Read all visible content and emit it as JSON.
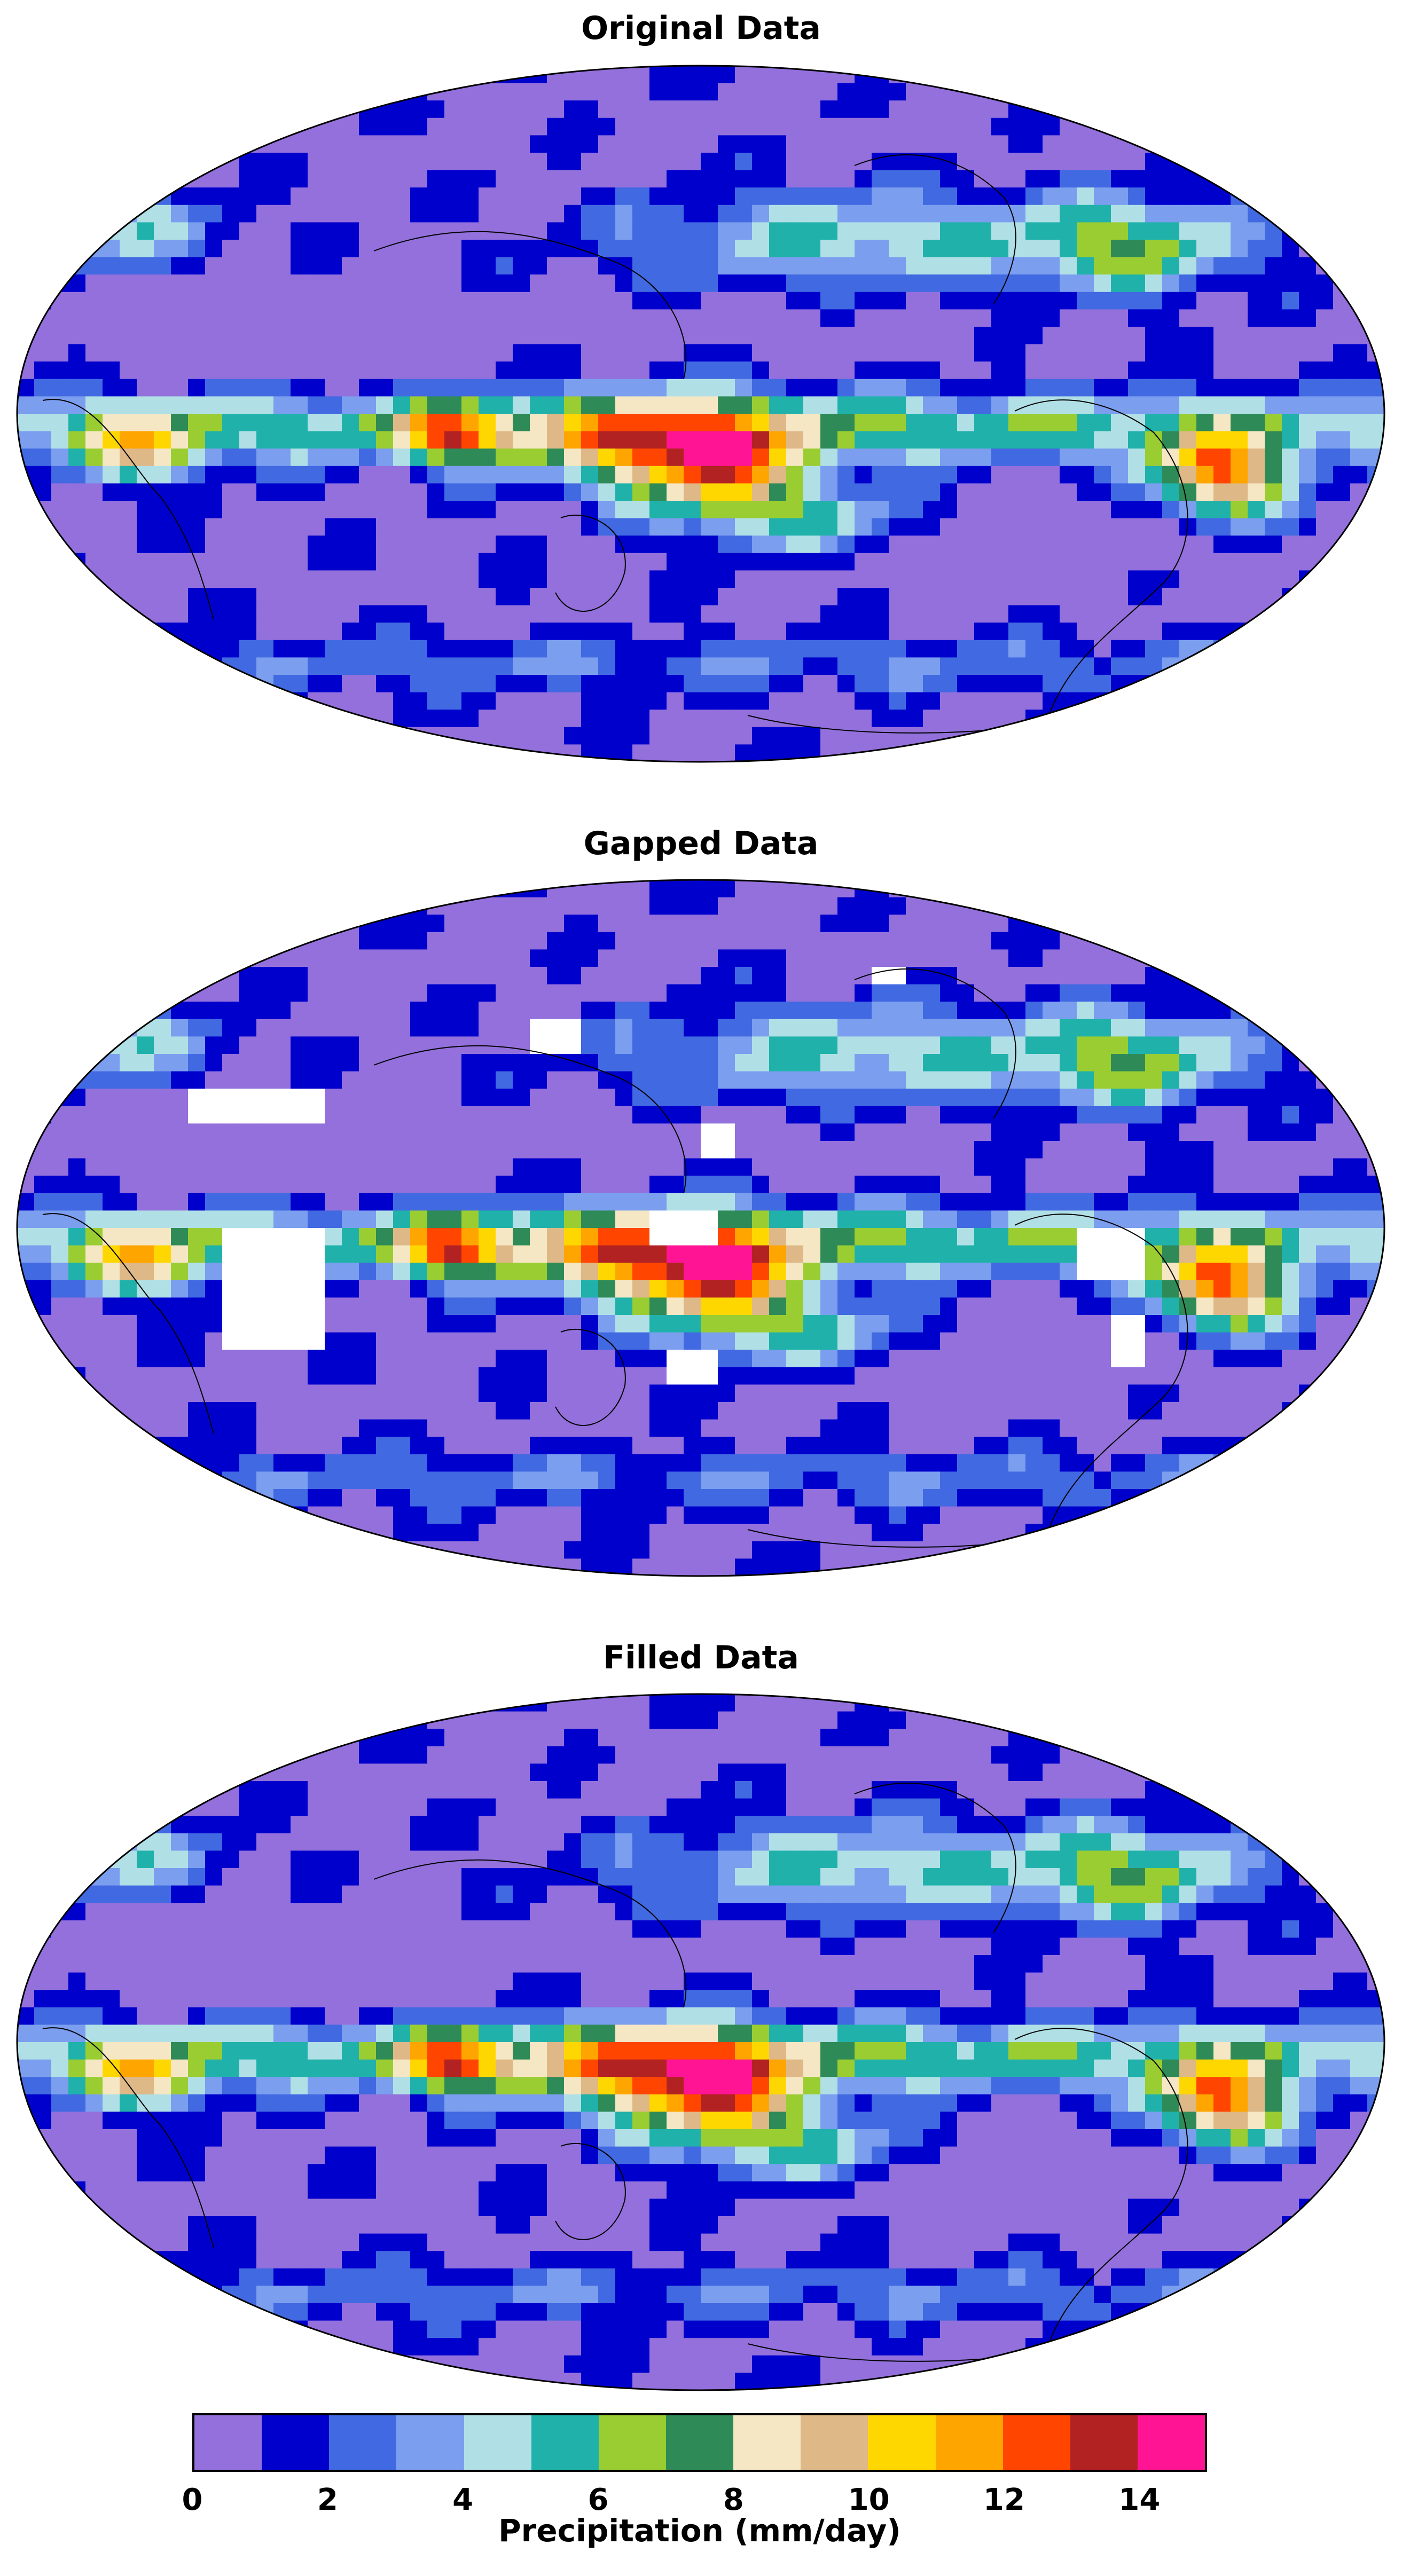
{
  "panels": [
    {
      "title": "Original Data",
      "gaps": false
    },
    {
      "title": "Gapped Data",
      "gaps": true
    },
    {
      "title": "Filled Data",
      "gaps": false
    }
  ],
  "colorbar": {
    "label": "Precipitation (mm/day)",
    "min": 0,
    "max": 15,
    "ticks": [
      "0",
      "2",
      "4",
      "6",
      "8",
      "10",
      "12",
      "14"
    ],
    "colors": [
      "#9370DB",
      "#0000CD",
      "#4169E1",
      "#7B9EEF",
      "#B0E0E6",
      "#20B2AA",
      "#9ACD32",
      "#2E8B57",
      "#F5E6C4",
      "#DEB887",
      "#FFD700",
      "#FFA500",
      "#FF4500",
      "#B22222",
      "#FF1493"
    ]
  }
}
